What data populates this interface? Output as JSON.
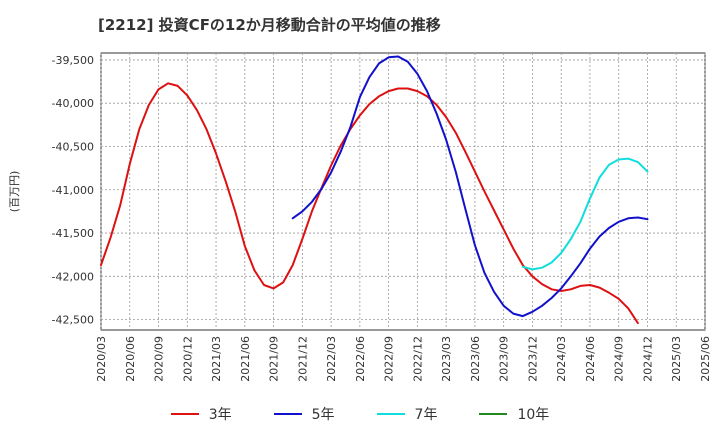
{
  "chart_data": {
    "type": "line",
    "title": "[2212]  投資CFの12か月移動合計の平均値の推移",
    "ylabel": "(百万円)",
    "xlabel": "",
    "ylim": [
      -42620,
      -39420
    ],
    "xlim": [
      "2020/03",
      "2025/06"
    ],
    "grid": true,
    "legend_position": "bottom",
    "x_ticks": [
      "2020/03",
      "2020/06",
      "2020/09",
      "2020/12",
      "2021/03",
      "2021/06",
      "2021/09",
      "2021/12",
      "2022/03",
      "2022/06",
      "2022/09",
      "2022/12",
      "2023/03",
      "2023/06",
      "2023/09",
      "2023/12",
      "2024/03",
      "2024/06",
      "2024/09",
      "2024/12",
      "2025/03",
      "2025/06"
    ],
    "y_ticks": [
      -39500,
      -40000,
      -40500,
      -41000,
      -41500,
      -42000,
      -42500
    ],
    "y_tick_labels": [
      "-39,500",
      "-40,000",
      "-40,500",
      "-41,000",
      "-41,500",
      "-42,000",
      "-42,500"
    ],
    "series": [
      {
        "name": "3年",
        "color": "#dd1111",
        "points": [
          [
            "2020/03",
            -41870
          ],
          [
            "2020/04",
            -41550
          ],
          [
            "2020/05",
            -41180
          ],
          [
            "2020/06",
            -40700
          ],
          [
            "2020/07",
            -40300
          ],
          [
            "2020/08",
            -40020
          ],
          [
            "2020/09",
            -39840
          ],
          [
            "2020/10",
            -39770
          ],
          [
            "2020/11",
            -39800
          ],
          [
            "2020/12",
            -39910
          ],
          [
            "2021/01",
            -40080
          ],
          [
            "2021/02",
            -40300
          ],
          [
            "2021/03",
            -40580
          ],
          [
            "2021/04",
            -40900
          ],
          [
            "2021/05",
            -41250
          ],
          [
            "2021/06",
            -41650
          ],
          [
            "2021/07",
            -41930
          ],
          [
            "2021/08",
            -42100
          ],
          [
            "2021/09",
            -42140
          ],
          [
            "2021/10",
            -42070
          ],
          [
            "2021/11",
            -41870
          ],
          [
            "2021/12",
            -41570
          ],
          [
            "2022/01",
            -41250
          ],
          [
            "2022/02",
            -40980
          ],
          [
            "2022/03",
            -40720
          ],
          [
            "2022/04",
            -40490
          ],
          [
            "2022/05",
            -40300
          ],
          [
            "2022/06",
            -40140
          ],
          [
            "2022/07",
            -40010
          ],
          [
            "2022/08",
            -39920
          ],
          [
            "2022/09",
            -39860
          ],
          [
            "2022/10",
            -39830
          ],
          [
            "2022/11",
            -39830
          ],
          [
            "2022/12",
            -39860
          ],
          [
            "2023/01",
            -39920
          ],
          [
            "2023/02",
            -40020
          ],
          [
            "2023/03",
            -40160
          ],
          [
            "2023/04",
            -40340
          ],
          [
            "2023/05",
            -40560
          ],
          [
            "2023/06",
            -40790
          ],
          [
            "2023/07",
            -41020
          ],
          [
            "2023/08",
            -41240
          ],
          [
            "2023/09",
            -41460
          ],
          [
            "2023/10",
            -41680
          ],
          [
            "2023/11",
            -41870
          ],
          [
            "2023/12",
            -42000
          ],
          [
            "2024/01",
            -42090
          ],
          [
            "2024/02",
            -42150
          ],
          [
            "2024/03",
            -42170
          ],
          [
            "2024/04",
            -42150
          ],
          [
            "2024/05",
            -42110
          ],
          [
            "2024/06",
            -42100
          ],
          [
            "2024/07",
            -42130
          ],
          [
            "2024/08",
            -42190
          ],
          [
            "2024/09",
            -42260
          ],
          [
            "2024/10",
            -42370
          ],
          [
            "2024/11",
            -42540
          ]
        ]
      },
      {
        "name": "5年",
        "color": "#1111cc",
        "points": [
          [
            "2021/11",
            -41330
          ],
          [
            "2021/12",
            -41250
          ],
          [
            "2022/01",
            -41140
          ],
          [
            "2022/02",
            -40990
          ],
          [
            "2022/03",
            -40800
          ],
          [
            "2022/04",
            -40560
          ],
          [
            "2022/05",
            -40280
          ],
          [
            "2022/06",
            -39930
          ],
          [
            "2022/07",
            -39700
          ],
          [
            "2022/08",
            -39540
          ],
          [
            "2022/09",
            -39470
          ],
          [
            "2022/10",
            -39460
          ],
          [
            "2022/11",
            -39520
          ],
          [
            "2022/12",
            -39660
          ],
          [
            "2023/01",
            -39860
          ],
          [
            "2023/02",
            -40120
          ],
          [
            "2023/03",
            -40420
          ],
          [
            "2023/04",
            -40790
          ],
          [
            "2023/05",
            -41220
          ],
          [
            "2023/06",
            -41640
          ],
          [
            "2023/07",
            -41960
          ],
          [
            "2023/08",
            -42180
          ],
          [
            "2023/09",
            -42340
          ],
          [
            "2023/10",
            -42430
          ],
          [
            "2023/11",
            -42460
          ],
          [
            "2023/12",
            -42410
          ],
          [
            "2024/01",
            -42340
          ],
          [
            "2024/02",
            -42250
          ],
          [
            "2024/03",
            -42140
          ],
          [
            "2024/04",
            -42000
          ],
          [
            "2024/05",
            -41850
          ],
          [
            "2024/06",
            -41680
          ],
          [
            "2024/07",
            -41540
          ],
          [
            "2024/08",
            -41440
          ],
          [
            "2024/09",
            -41370
          ],
          [
            "2024/10",
            -41330
          ],
          [
            "2024/11",
            -41320
          ],
          [
            "2024/12",
            -41340
          ]
        ]
      },
      {
        "name": "7年",
        "color": "#11dddd",
        "points": [
          [
            "2023/11",
            -41890
          ],
          [
            "2023/12",
            -41920
          ],
          [
            "2024/01",
            -41900
          ],
          [
            "2024/02",
            -41840
          ],
          [
            "2024/03",
            -41730
          ],
          [
            "2024/04",
            -41570
          ],
          [
            "2024/05",
            -41370
          ],
          [
            "2024/06",
            -41100
          ],
          [
            "2024/07",
            -40860
          ],
          [
            "2024/08",
            -40710
          ],
          [
            "2024/09",
            -40650
          ],
          [
            "2024/10",
            -40640
          ],
          [
            "2024/11",
            -40680
          ],
          [
            "2024/12",
            -40790
          ]
        ]
      },
      {
        "name": "10年",
        "color": "#228822",
        "points": []
      }
    ]
  }
}
